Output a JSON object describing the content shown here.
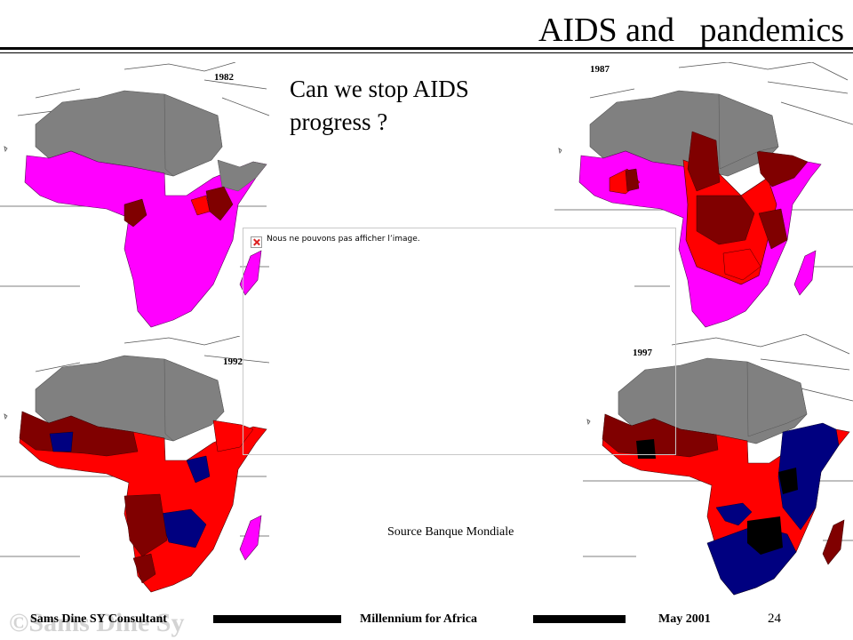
{
  "slide": {
    "title": "AIDS and   pandemics",
    "question": "Can we stop AIDS progress ?",
    "broken_image_text": "Nous ne pouvons pas afficher l’image.",
    "source": "Source Banque Mondiale",
    "page_number": "24"
  },
  "maps": [
    {
      "year": "1982"
    },
    {
      "year": "1987"
    },
    {
      "year": "1992"
    },
    {
      "year": "1997"
    }
  ],
  "footer": {
    "author": "Sams Dine SY Consultant",
    "event": "Millennium  for Africa",
    "date": "May 2001",
    "watermark": "©Sams Dine Sy"
  },
  "colors": {
    "grey": "#808080",
    "magenta": "#ff00ff",
    "red": "#ff0000",
    "dark_red": "#800000",
    "navy": "#000080",
    "black": "#000000"
  }
}
